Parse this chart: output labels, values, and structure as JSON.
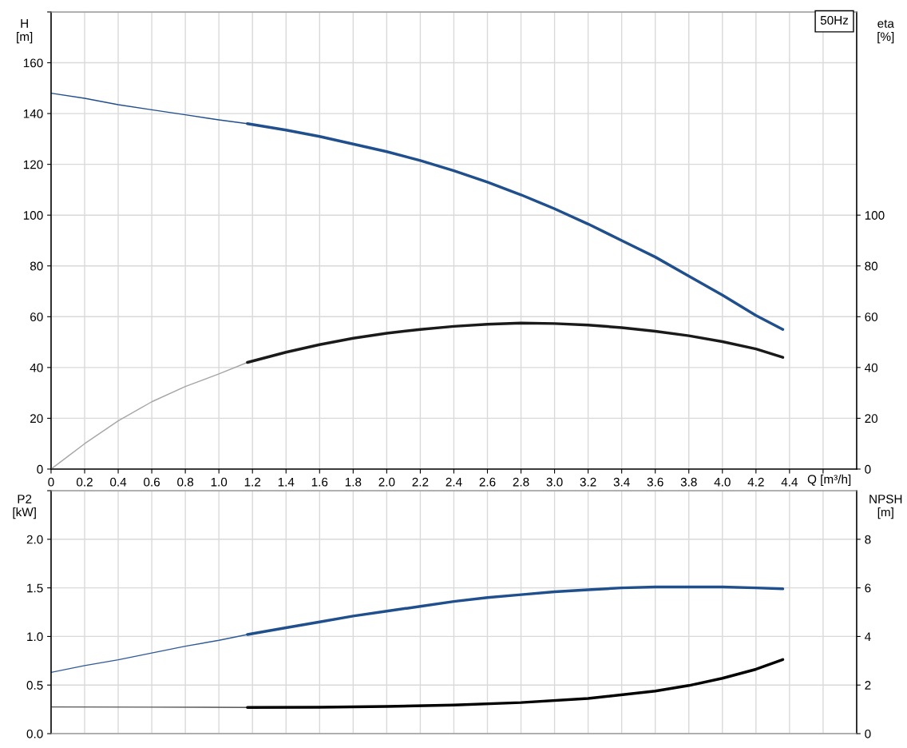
{
  "chart_data": [
    {
      "type": "line",
      "xlabel": "Q [m³/h]",
      "ylabel": "H\n[m]",
      "y2label": "eta\n[%]",
      "annotations": [
        "50Hz"
      ],
      "xlim": [
        0,
        4.8
      ],
      "xticks": [
        0,
        0.2,
        0.4,
        0.6,
        0.8,
        {
          "value": 1,
          "label": "1.0"
        },
        1.2,
        1.4,
        1.6,
        1.8,
        {
          "value": 2,
          "label": "2.0"
        },
        2.2,
        2.4,
        2.6,
        2.8,
        {
          "value": 3,
          "label": "3.0"
        },
        3.2,
        3.4,
        3.6,
        3.8,
        {
          "value": 4,
          "label": "4.0"
        },
        4.2,
        4.4,
        {
          "value": 4.6,
          "label": null
        }
      ],
      "ylim": [
        0,
        180
      ],
      "yticks": [
        0,
        20,
        40,
        60,
        80,
        100,
        120,
        140,
        160,
        {
          "value": 180,
          "label": null
        }
      ],
      "y2lim": [
        0,
        180
      ],
      "y2ticks": [
        0,
        20,
        40,
        60,
        80,
        100
      ],
      "grid": true,
      "legend": false,
      "marker": "none",
      "line_style": "solid",
      "series": [
        {
          "color": "#1f4f8c",
          "x": [
            0,
            0.2,
            0.4,
            0.6,
            0.8,
            1.0,
            1.17
          ],
          "values": [
            148,
            146,
            143.5,
            141.5,
            139.5,
            137.5,
            136
          ]
        },
        {
          "color": "#1f4f8c",
          "x": [
            1.17,
            1.4,
            1.6,
            1.8,
            2.0,
            2.2,
            2.4,
            2.6,
            2.8,
            3.0,
            3.2,
            3.4,
            3.6,
            3.8,
            4.0,
            4.2,
            4.36
          ],
          "values": [
            136,
            133.5,
            131,
            128,
            125,
            121.5,
            117.5,
            113,
            108,
            102.5,
            96.5,
            90,
            83.5,
            76,
            68.5,
            60.5,
            55
          ]
        },
        {
          "color": "#a6a6a6",
          "axis": "y2",
          "x": [
            0,
            0.1,
            0.2,
            0.4,
            0.6,
            0.8,
            1.0,
            1.17
          ],
          "values": [
            0,
            5,
            10,
            19,
            26.5,
            32.5,
            37.5,
            42
          ]
        },
        {
          "color": "#1a1a1a",
          "axis": "y2",
          "x": [
            1.17,
            1.4,
            1.6,
            1.8,
            2.0,
            2.2,
            2.4,
            2.6,
            2.8,
            3.0,
            3.2,
            3.4,
            3.6,
            3.8,
            4.0,
            4.2,
            4.36
          ],
          "values": [
            42,
            46,
            49,
            51.5,
            53.5,
            55,
            56.2,
            57,
            57.5,
            57.3,
            56.7,
            55.7,
            54.3,
            52.5,
            50.2,
            47.3,
            44
          ]
        }
      ]
    },
    {
      "type": "line",
      "ylabel": "P2\n[kW]",
      "y2label": "NPSH\n[m]",
      "tick_labels": "y",
      "xlim": [
        0,
        4.8
      ],
      "xticks": [
        0,
        0.2,
        0.4,
        0.6,
        0.8,
        1.0,
        1.2,
        1.4,
        1.6,
        1.8,
        2.0,
        2.2,
        2.4,
        2.6,
        2.8,
        3.0,
        3.2,
        3.4,
        3.6,
        3.8,
        4.0,
        4.2,
        4.4,
        4.6
      ],
      "ylim": [
        0,
        2.5
      ],
      "yticks": [
        {
          "value": 0,
          "label": "0.0"
        },
        0.5,
        {
          "value": 1,
          "label": "1.0"
        },
        1.5,
        {
          "value": 2,
          "label": "2.0"
        },
        {
          "value": 2.5,
          "label": null
        }
      ],
      "y2lim": [
        0,
        10
      ],
      "y2ticks": [
        0,
        2,
        4,
        6,
        8
      ],
      "grid": true,
      "legend": false,
      "marker": "none",
      "line_style": "solid",
      "series": [
        {
          "color": "#2f5a99",
          "x": [
            0,
            0.2,
            0.4,
            0.6,
            0.8,
            1.0,
            1.17
          ],
          "values": [
            0.63,
            0.7,
            0.76,
            0.83,
            0.9,
            0.96,
            1.02
          ]
        },
        {
          "color": "#1f4f8c",
          "x": [
            1.17,
            1.4,
            1.6,
            1.8,
            2.0,
            2.2,
            2.4,
            2.6,
            2.8,
            3.0,
            3.2,
            3.4,
            3.6,
            3.8,
            4.0,
            4.2,
            4.36
          ],
          "values": [
            1.02,
            1.09,
            1.15,
            1.21,
            1.26,
            1.31,
            1.36,
            1.4,
            1.43,
            1.46,
            1.48,
            1.5,
            1.51,
            1.51,
            1.51,
            1.5,
            1.49
          ]
        },
        {
          "color": "#555555",
          "axis": "y2",
          "x": [
            0,
            0.6,
            1.17
          ],
          "values": [
            1.1,
            1.09,
            1.08
          ]
        },
        {
          "color": "#000000",
          "axis": "y2",
          "x": [
            1.17,
            1.6,
            2.0,
            2.4,
            2.8,
            3.2,
            3.6,
            3.8,
            4.0,
            4.2,
            4.36
          ],
          "values": [
            1.08,
            1.09,
            1.12,
            1.18,
            1.28,
            1.45,
            1.75,
            1.98,
            2.28,
            2.65,
            3.05
          ]
        }
      ]
    }
  ]
}
